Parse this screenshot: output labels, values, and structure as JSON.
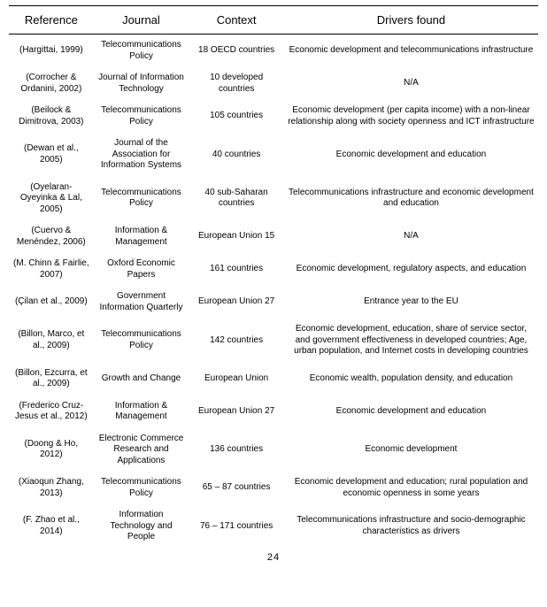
{
  "columns": [
    "Reference",
    "Journal",
    "Context",
    "Drivers found"
  ],
  "rows": [
    {
      "reference": "(Hargittai, 1999)",
      "journal": "Telecommunications Policy",
      "context": "18 OECD countries",
      "drivers": "Economic development and telecommunications infrastructure"
    },
    {
      "reference": "(Corrocher & Ordanini, 2002)",
      "journal": "Journal of Information Technology",
      "context": "10 developed countries",
      "drivers": "N/A"
    },
    {
      "reference": "(Beilock & Dimitrova, 2003)",
      "journal": "Telecommunications Policy",
      "context": "105 countries",
      "drivers": "Economic development (per capita income) with a non-linear relationship along with society openness and ICT infrastructure"
    },
    {
      "reference": "(Dewan et al., 2005)",
      "journal": "Journal of the Association for Information Systems",
      "context": "40 countries",
      "drivers": "Economic development and education"
    },
    {
      "reference": "(Oyelaran-Oyeyinka & Lal, 2005)",
      "journal": "Telecommunications Policy",
      "context": "40 sub-Saharan countries",
      "drivers": "Telecommunications infrastructure and economic development and education"
    },
    {
      "reference": "(Cuervo & Menéndez, 2006)",
      "journal": "Information & Management",
      "context": "European Union 15",
      "drivers": "N/A"
    },
    {
      "reference": "(M. Chinn & Fairlie, 2007)",
      "journal": "Oxford Economic Papers",
      "context": "161 countries",
      "drivers": "Economic development, regulatory aspects, and education"
    },
    {
      "reference": "(Çilan et al., 2009)",
      "journal": "Government Information Quarterly",
      "context": "European Union 27",
      "drivers": "Entrance year to the EU"
    },
    {
      "reference": "(Billon, Marco, et al., 2009)",
      "journal": "Telecommunications Policy",
      "context": "142 countries",
      "drivers": "Economic development, education, share of service sector, and government effectiveness in developed countries; Age, urban population, and Internet costs in developing countries"
    },
    {
      "reference": "(Billon, Ezcurra, et al., 2009)",
      "journal": "Growth and Change",
      "context": "European Union",
      "drivers": "Economic wealth, population density, and education"
    },
    {
      "reference": "(Frederico Cruz-Jesus et al., 2012)",
      "journal": "Information & Management",
      "context": "European Union 27",
      "drivers": "Economic development and education"
    },
    {
      "reference": "(Doong & Ho, 2012)",
      "journal": "Electronic Commerce Research and Applications",
      "context": "136 countries",
      "drivers": "Economic development"
    },
    {
      "reference": "(Xiaoqun Zhang, 2013)",
      "journal": "Telecommunications Policy",
      "context": "65 – 87 countries",
      "drivers": "Economic development and education; rural population and economic openness in some years"
    },
    {
      "reference": "(F. Zhao et al., 2014)",
      "journal": "Information Technology and People",
      "context": "76 – 171 countries",
      "drivers": "Telecommunications infrastructure and socio-demographic characteristics as drivers"
    }
  ],
  "page_number": "24"
}
